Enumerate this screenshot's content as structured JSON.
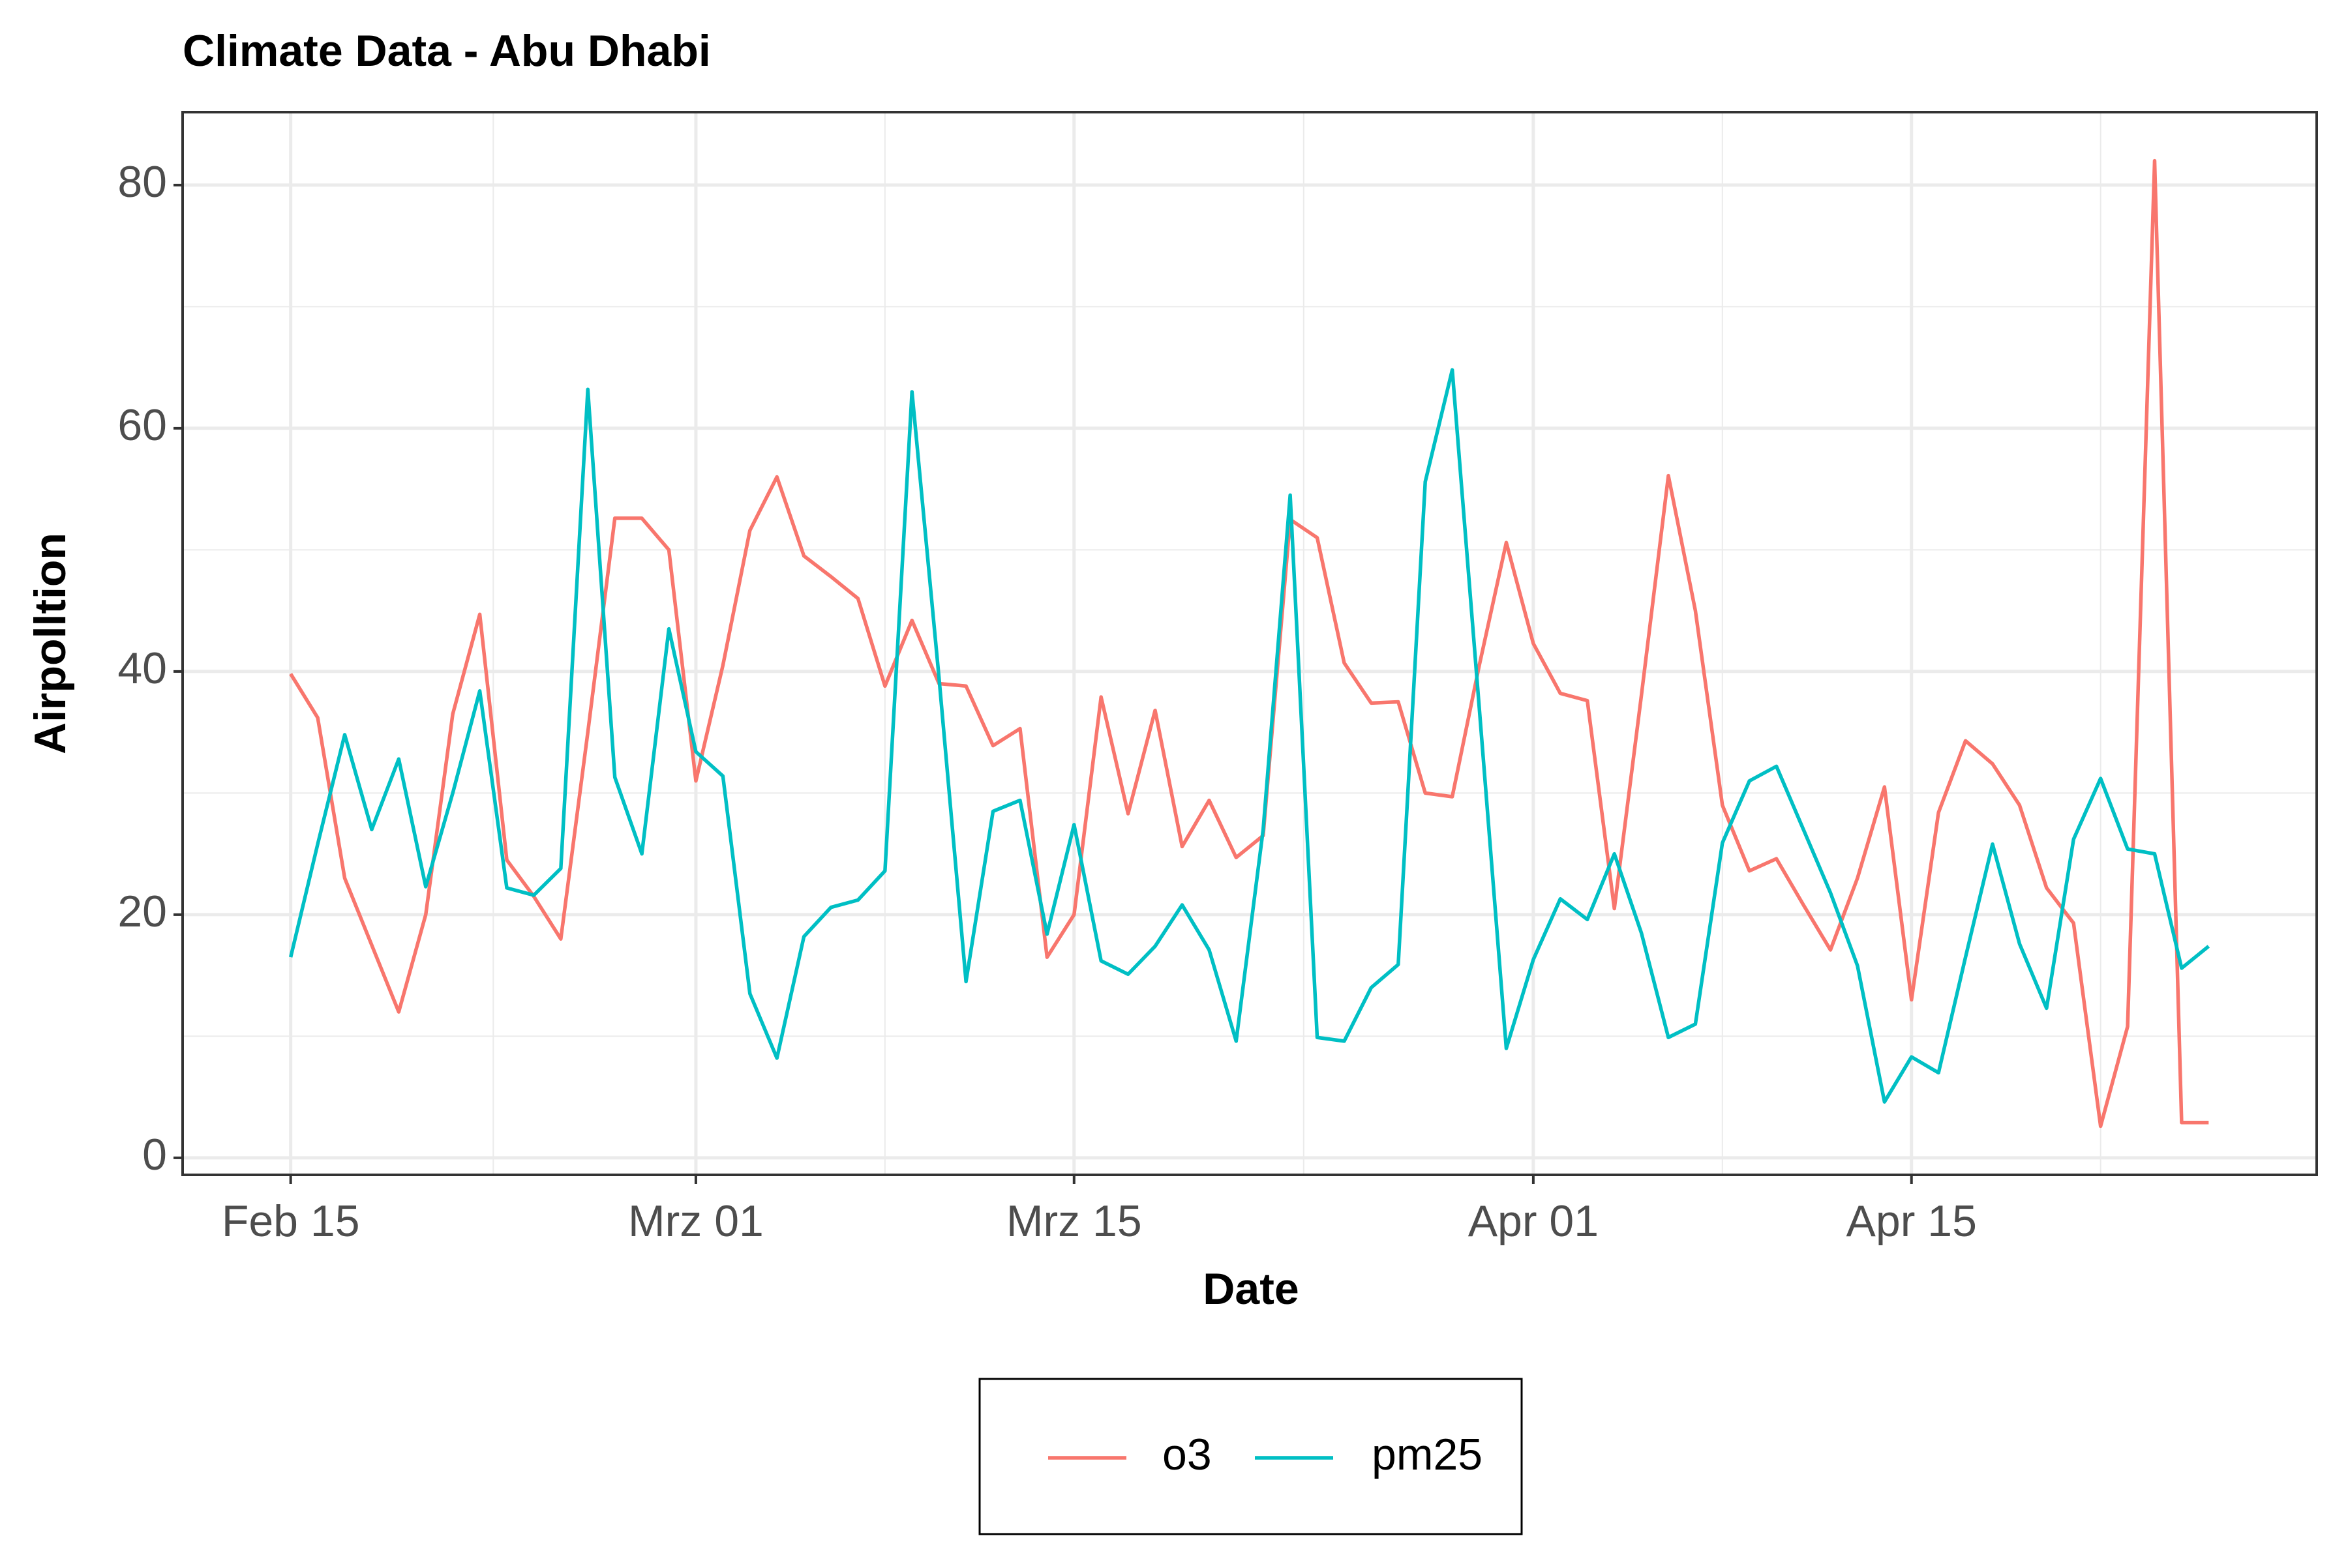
{
  "chart_data": {
    "type": "line",
    "title": "Climate Data -  Abu Dhabi",
    "x_label": "Date",
    "y_label": "Airpolltion",
    "x": [
      "02-15",
      "02-16",
      "02-17",
      "02-18",
      "02-19",
      "02-20",
      "02-21",
      "02-22",
      "02-23",
      "02-24",
      "02-25",
      "02-26",
      "02-27",
      "02-28",
      "02-29",
      "03-01",
      "03-02",
      "03-03",
      "03-04",
      "03-05",
      "03-06",
      "03-07",
      "03-08",
      "03-09",
      "03-10",
      "03-11",
      "03-12",
      "03-13",
      "03-14",
      "03-15",
      "03-16",
      "03-17",
      "03-18",
      "03-19",
      "03-20",
      "03-21",
      "03-22",
      "03-23",
      "03-24",
      "03-25",
      "03-26",
      "03-27",
      "03-28",
      "03-29",
      "03-30",
      "03-31",
      "04-01",
      "04-02",
      "04-03",
      "04-04",
      "04-05",
      "04-06",
      "04-07",
      "04-08",
      "04-09",
      "04-10",
      "04-11",
      "04-12",
      "04-13",
      "04-14",
      "04-15",
      "04-16",
      "04-17",
      "04-18",
      "04-19",
      "04-20",
      "04-21",
      "04-22",
      "04-23",
      "04-24",
      "04-25",
      "04-26"
    ],
    "series": [
      {
        "name": "o3",
        "color": "#f8766d",
        "values": [
          39.8,
          36.2,
          23,
          17.5,
          12,
          20,
          36.5,
          44.7,
          24.5,
          21.5,
          18,
          35,
          52.6,
          52.6,
          50,
          31,
          40.5,
          51.6,
          56,
          49.5,
          47.8,
          46,
          38.8,
          44.2,
          39,
          38.8,
          33.9,
          35.3,
          16.5,
          20,
          37.9,
          28.3,
          36.8,
          25.6,
          29.4,
          24.7,
          26.5,
          52.5,
          51,
          40.7,
          37.4,
          37.5,
          30,
          29.7,
          40.5,
          50.6,
          42.3,
          38.2,
          37.6,
          20.5,
          38,
          56.1,
          45,
          29,
          23.6,
          24.6,
          20.8,
          17.1,
          23,
          30.5,
          13,
          28.4,
          34.3,
          32.4,
          29,
          22.2,
          19.3,
          2.6,
          10.8,
          82,
          2.9,
          2.9
        ]
      },
      {
        "name": "pm25",
        "color": "#00bfc4",
        "values": [
          16.5,
          25.8,
          34.8,
          27,
          32.8,
          22.3,
          30,
          38.4,
          22.2,
          21.6,
          23.8,
          63.2,
          31.3,
          25,
          43.5,
          33.4,
          31.4,
          13.5,
          8.2,
          18.2,
          20.6,
          21.2,
          23.6,
          63,
          39.5,
          14.5,
          28.5,
          29.4,
          18.4,
          27.4,
          16.2,
          15.1,
          17.4,
          20.8,
          17.1,
          9.6,
          27,
          54.5,
          9.9,
          9.6,
          14,
          15.9,
          55.6,
          64.8,
          37,
          9,
          16.3,
          21.3,
          19.6,
          25,
          18.5,
          9.9,
          11,
          25.9,
          31,
          32.2,
          27,
          21.8,
          15.8,
          4.6,
          8.3,
          7,
          16.5,
          25.8,
          17.6,
          12.3,
          26.2,
          31.2,
          25.4,
          25,
          15.6,
          17.4
        ]
      }
    ],
    "xlim": [
      "02-11",
      "04-30"
    ],
    "xticks": [
      {
        "value": "02-15",
        "label": "Feb 15"
      },
      {
        "value": "03-01",
        "label": "Mrz 01"
      },
      {
        "value": "03-15",
        "label": "Mrz 15"
      },
      {
        "value": "04-01",
        "label": "Apr 01"
      },
      {
        "value": "04-15",
        "label": "Apr 15"
      }
    ],
    "ylim": [
      -1.4,
      86
    ],
    "yticks": [
      0,
      20,
      40,
      60,
      80
    ],
    "grid": true,
    "legend": "bottom"
  }
}
